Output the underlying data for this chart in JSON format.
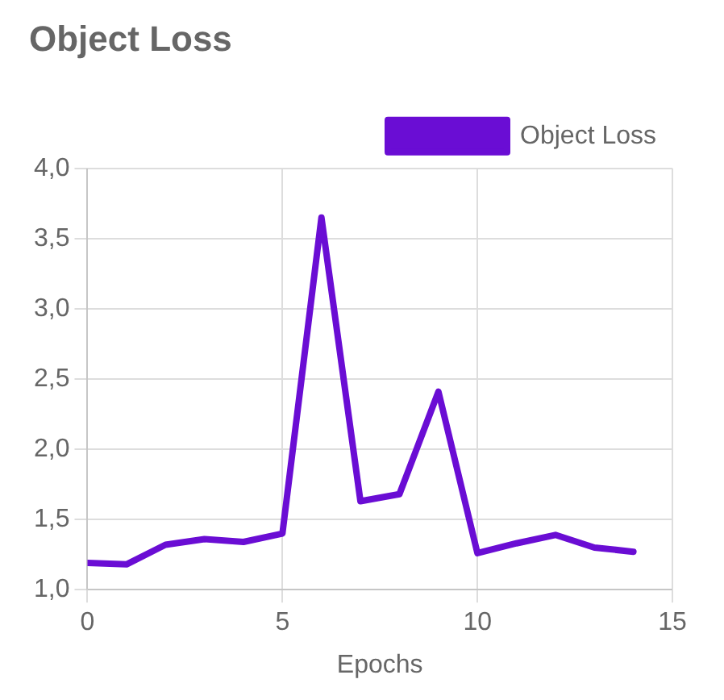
{
  "chart_data": {
    "type": "line",
    "title": "Object Loss",
    "xlabel": "Epochs",
    "x": [
      0,
      1,
      2,
      3,
      4,
      5,
      6,
      7,
      8,
      9,
      10,
      11,
      12,
      13,
      14
    ],
    "series": [
      {
        "name": "Object Loss",
        "color": "#6a0dd4",
        "values": [
          1.19,
          1.18,
          1.32,
          1.36,
          1.34,
          1.4,
          3.65,
          1.63,
          1.68,
          2.41,
          1.26,
          1.33,
          1.39,
          1.3,
          1.27
        ]
      }
    ],
    "xlim": [
      0,
      15
    ],
    "xticks": [
      0,
      5,
      10,
      15
    ],
    "ylim": [
      1,
      4
    ],
    "yticks": [
      {
        "value": 1,
        "label": "1,0"
      },
      {
        "value": 1.5,
        "label": "1,5"
      },
      {
        "value": 2,
        "label": "2,0"
      },
      {
        "value": 2.5,
        "label": "2,5"
      },
      {
        "value": 3,
        "label": "3,0"
      },
      {
        "value": 3.5,
        "label": "3,5"
      },
      {
        "value": 4,
        "label": "4,0"
      }
    ],
    "grid": true,
    "legend": "top right",
    "marker": "none",
    "line_style": "solid"
  }
}
